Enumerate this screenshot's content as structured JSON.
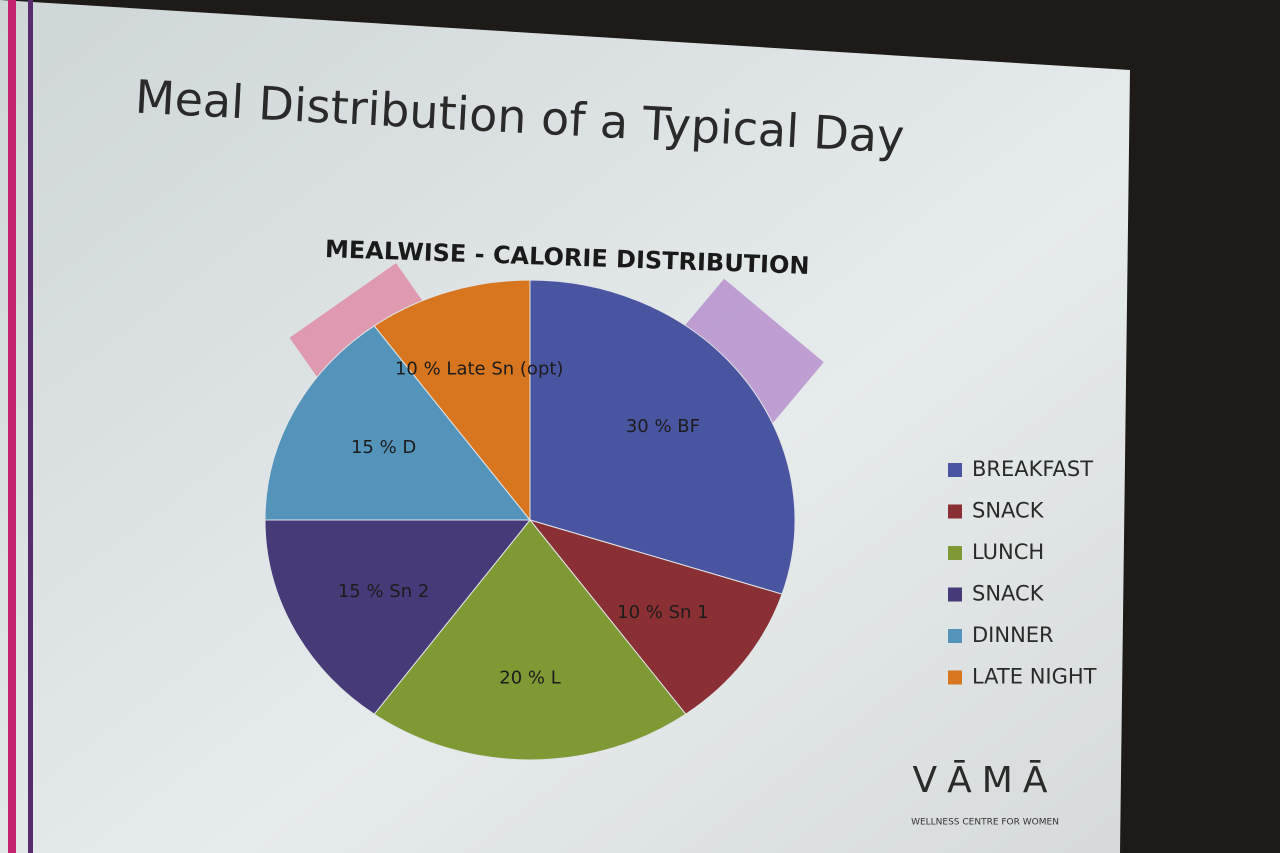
{
  "chart_data": {
    "type": "pie",
    "slide_title": "Meal Distribution of a Typical Day",
    "title": "MEALWISE - CALORIE DISTRIBUTION",
    "categories": [
      "BREAKFAST",
      "SNACK",
      "LUNCH",
      "SNACK",
      "DINNER",
      "LATE NIGHT"
    ],
    "values": [
      30,
      10,
      20,
      15,
      15,
      10
    ],
    "value_labels": [
      "30 % BF",
      "10 % Sn 1",
      "20 % L",
      "15 % Sn 2",
      "15 % D",
      "10 % Late Sn (opt)"
    ],
    "colors": [
      "#4a55a2",
      "#8a2f33",
      "#7f9a34",
      "#473a78",
      "#5494bb",
      "#d8761f"
    ],
    "legend": "right"
  },
  "logo": {
    "brand": "VĀMĀ",
    "tagline": "WELLNESS CENTRE FOR WOMEN"
  }
}
